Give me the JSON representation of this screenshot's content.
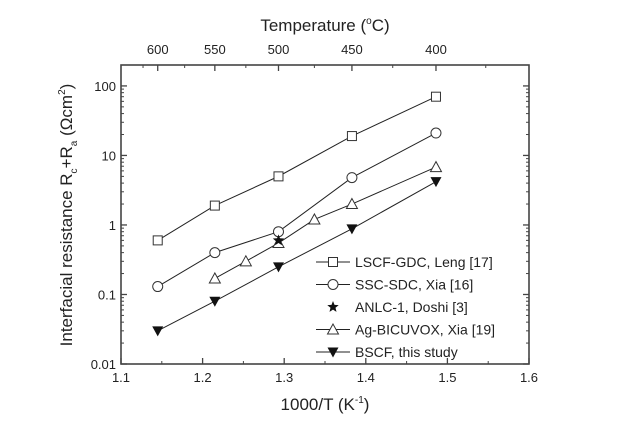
{
  "chart_data": {
    "type": "scatter",
    "title": "",
    "xlabel": "1000/T  (K",
    "xlabel_sup": "-1",
    "xlabel_end": ")",
    "ylabel": "Interfacial resistance R",
    "ylabel_sub1": "c",
    "ylabel_mid": "+R",
    "ylabel_sub2": "a",
    "ylabel_unit": " (Ωcm",
    "ylabel_unit_sup": "2",
    "ylabel_end": ")",
    "top_xlabel": "Temperature (",
    "top_xlabel_sup": "o",
    "top_xlabel_end": "C)",
    "xlim": [
      1.1,
      1.6
    ],
    "ylim": [
      0.01,
      200
    ],
    "yscale": "log",
    "x_ticks": [
      "1.1",
      "1.2",
      "1.3",
      "1.4",
      "1.5",
      "1.6"
    ],
    "y_ticks": [
      "0.01",
      "0.1",
      "1",
      "10",
      "100"
    ],
    "top_ticks": [
      {
        "label": "600",
        "x": 1.145
      },
      {
        "label": "550",
        "x": 1.215
      },
      {
        "label": "500",
        "x": 1.293
      },
      {
        "label": "450",
        "x": 1.383
      },
      {
        "label": "400",
        "x": 1.486
      }
    ],
    "legend_position": "bottom-right",
    "series": [
      {
        "name": "LSCF-GDC, Leng [17]",
        "marker": "square-open",
        "line": true,
        "x": [
          1.145,
          1.215,
          1.293,
          1.383,
          1.486
        ],
        "y": [
          0.6,
          1.9,
          5.0,
          19,
          70
        ]
      },
      {
        "name": "SSC-SDC, Xia [16]",
        "marker": "circle-open",
        "line": true,
        "x": [
          1.145,
          1.215,
          1.293,
          1.383,
          1.486
        ],
        "y": [
          0.13,
          0.4,
          0.8,
          4.8,
          21
        ]
      },
      {
        "name": "ANLC-1, Doshi [3]",
        "marker": "star-filled",
        "line": false,
        "x": [
          1.293
        ],
        "y": [
          0.6
        ]
      },
      {
        "name": "Ag-BICUVOX, Xia [19]",
        "marker": "triangle-open",
        "line": true,
        "x": [
          1.215,
          1.253,
          1.293,
          1.337,
          1.383,
          1.486
        ],
        "y": [
          0.17,
          0.3,
          0.55,
          1.2,
          2.0,
          6.8
        ]
      },
      {
        "name": "BSCF, this study",
        "marker": "triangle-down-filled",
        "line": true,
        "x": [
          1.145,
          1.215,
          1.293,
          1.383,
          1.486
        ],
        "y": [
          0.03,
          0.08,
          0.25,
          0.88,
          4.2
        ]
      }
    ]
  }
}
